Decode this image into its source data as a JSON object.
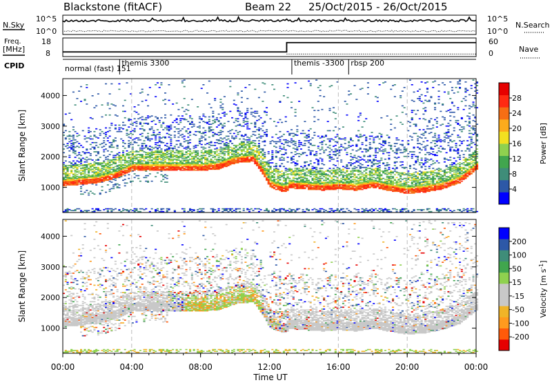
{
  "header": {
    "station": "Blackstone (fitACF)",
    "beam": "Beam 22",
    "daterange": "25/Oct/2015 - 26/Oct/2015"
  },
  "top_panel": {
    "left_label": "N.Sky",
    "right_label": "N.Search",
    "left_ticks": [
      "10^5",
      "10^0"
    ],
    "right_ticks": [
      "10^5",
      "10^0"
    ]
  },
  "freq_panel": {
    "left_label_line1": "Freq.",
    "left_label_line2": "[MHz]",
    "right_label": "Nave",
    "left_ticks": [
      "18",
      "8"
    ],
    "right_ticks": [
      "60",
      "0"
    ],
    "freq_step": {
      "before_hours": 13.0,
      "low_value": 10.5,
      "high_value": 15.5
    },
    "nave_value": 8
  },
  "cpid": {
    "label": "CPID",
    "segments": [
      {
        "start_hour": 0,
        "label": "normal (fast) 151"
      },
      {
        "start_hour": 3.3,
        "label": "themis 3300"
      },
      {
        "start_hour": 13.3,
        "label": "themis -3300"
      },
      {
        "start_hour": 16.6,
        "label": "rbsp 200"
      }
    ]
  },
  "chart_data": [
    {
      "type": "heatmap",
      "name": "power",
      "ylabel": "Slant Range [km]",
      "ylim": [
        180,
        4550
      ],
      "yticks": [
        "1000",
        "2000",
        "3000",
        "4000"
      ],
      "ytick_values": [
        1000,
        2000,
        3000,
        4000
      ],
      "colorbar_label": "Power [dB]",
      "colorbar_ticks": [
        "28",
        "24",
        "20",
        "16",
        "12",
        "8",
        "4"
      ],
      "colorbar_colors": [
        "#0000ff",
        "#2d58a7",
        "#3f8d79",
        "#41a64e",
        "#8fd14f",
        "#f2e020",
        "#fcab1c",
        "#f66e14",
        "#ff2a12",
        "#e60000"
      ],
      "bands": [
        {
          "t": [
            0,
            1,
            2,
            3,
            4,
            5,
            6,
            7,
            8,
            9,
            10,
            11,
            11.5,
            12,
            12.8,
            13
          ],
          "r": [
            1150,
            1200,
            1250,
            1400,
            1650,
            1650,
            1650,
            1650,
            1650,
            1700,
            1900,
            1950,
            1600,
            1100,
            950,
            1000
          ],
          "w": 120
        },
        {
          "t": [
            13,
            14,
            15,
            16,
            17,
            18,
            19,
            20,
            21,
            22,
            23,
            24
          ],
          "r": [
            1080,
            1050,
            1000,
            1050,
            1000,
            1100,
            980,
            900,
            950,
            1050,
            1250,
            1700
          ],
          "w": 100
        }
      ]
    },
    {
      "type": "heatmap",
      "name": "velocity",
      "ylabel": "Slant Range [km]",
      "xlabel": "Time UT",
      "ylim": [
        180,
        4550
      ],
      "yticks": [
        "1000",
        "2000",
        "3000",
        "4000"
      ],
      "ytick_values": [
        1000,
        2000,
        3000,
        4000
      ],
      "colorbar_label": "Velocity [m s",
      "colorbar_label_sup": "-1",
      "colorbar_label_end": "]",
      "colorbar_ticks": [
        "200",
        "100",
        "50",
        "15",
        "-15",
        "-50",
        "-100",
        "-200"
      ],
      "colorbar_colors": [
        "#e60000",
        "#ff5a0a",
        "#ff9a1e",
        "#f0b428",
        "#c8c8c8",
        "#c8c8c8",
        "#8fd14f",
        "#41a64e",
        "#3f8d79",
        "#2d58a7",
        "#0000ff"
      ],
      "xticks": [
        "00:00",
        "04:00",
        "08:00",
        "12:00",
        "16:00",
        "20:00",
        "00:00"
      ],
      "xtick_hours": [
        0,
        4,
        8,
        12,
        16,
        20,
        24
      ]
    }
  ]
}
